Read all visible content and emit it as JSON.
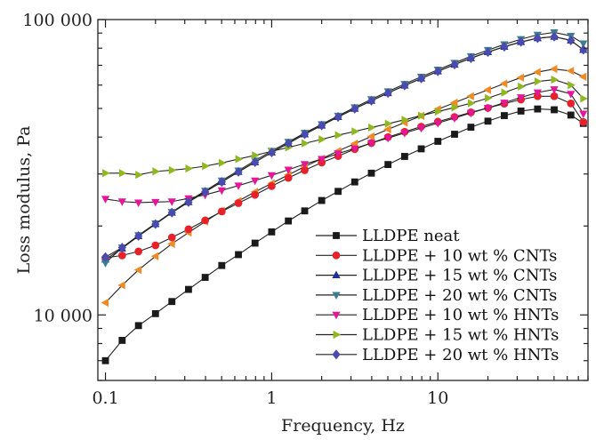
{
  "chart_data": {
    "type": "line",
    "title": "",
    "xlabel": "Frequency, Hz",
    "ylabel": "Loss modulus, Pa",
    "x_scale": "log",
    "y_scale": "log",
    "xlim": [
      0.09,
      80
    ],
    "ylim": [
      6000,
      100000
    ],
    "x_ticks": [
      {
        "value": 0.1,
        "label": "0.1"
      },
      {
        "value": 1,
        "label": "1"
      },
      {
        "value": 10,
        "label": "10"
      }
    ],
    "y_ticks": [
      {
        "value": 10000,
        "label": "10 000"
      },
      {
        "value": 100000,
        "label": "100 000"
      }
    ],
    "legend_position": "bottom-right",
    "grid": false,
    "x": [
      0.1,
      0.126,
      0.158,
      0.2,
      0.251,
      0.316,
      0.398,
      0.501,
      0.631,
      0.794,
      1.0,
      1.26,
      1.58,
      2.0,
      2.51,
      3.16,
      3.98,
      5.01,
      6.31,
      7.94,
      10.0,
      12.6,
      15.8,
      20.0,
      25.1,
      31.6,
      39.8,
      50.1,
      63.1,
      75.0
    ],
    "series": [
      {
        "name": "LLDPE neat",
        "marker": "square",
        "color": "#1a1a1a",
        "values": [
          7000,
          8200,
          9200,
          10100,
          11100,
          12200,
          13400,
          14700,
          16000,
          17500,
          19100,
          20800,
          22500,
          24400,
          26200,
          28200,
          30200,
          32300,
          34400,
          36500,
          38700,
          40900,
          43200,
          45300,
          47300,
          49000,
          49800,
          49500,
          47500,
          44500
        ]
      },
      {
        "name": "LLDPE + 10 wt % CNTs",
        "marker": "circle",
        "color": "#e8202a",
        "values": [
          15600,
          15900,
          16400,
          17200,
          18300,
          19500,
          20900,
          22400,
          23900,
          25500,
          27300,
          29100,
          30900,
          32800,
          34500,
          36400,
          38200,
          40000,
          41700,
          43400,
          45100,
          46800,
          48500,
          50200,
          51900,
          53600,
          55000,
          55000,
          52000,
          45000
        ]
      },
      {
        "name": "LLDPE + 15 wt % CNTs",
        "marker": "triangle-up",
        "color": "#1c2f9c",
        "values": [
          15400,
          16800,
          18500,
          20300,
          22200,
          24100,
          26100,
          28200,
          30500,
          32900,
          35500,
          38100,
          40900,
          43800,
          46800,
          49900,
          53100,
          56400,
          59800,
          63200,
          66800,
          70400,
          74000,
          77600,
          80900,
          84000,
          86500,
          87500,
          85000,
          79000
        ]
      },
      {
        "name": "LLDPE + 20 wt % CNTs",
        "marker": "triangle-down",
        "color": "#3a7e8f",
        "values": [
          15000,
          16900,
          18600,
          20400,
          22300,
          24300,
          26300,
          28500,
          30800,
          33300,
          35900,
          38500,
          41300,
          44200,
          47200,
          50400,
          53700,
          57100,
          60500,
          64000,
          67600,
          71300,
          75100,
          78800,
          82400,
          85800,
          88800,
          90500,
          88000,
          83000
        ]
      },
      {
        "name": "LLDPE + 10 wt % HNTs",
        "marker": "triangle-down",
        "color": "#e6169a",
        "values": [
          24700,
          24200,
          24000,
          24100,
          24200,
          24800,
          25500,
          26400,
          27400,
          28500,
          29700,
          31000,
          32400,
          33700,
          35200,
          36600,
          38200,
          39700,
          41300,
          42900,
          44600,
          46400,
          48300,
          50200,
          52300,
          54500,
          56600,
          58000,
          56000,
          48000
        ]
      },
      {
        "name": "LLDPE + 15 wt % HNTs",
        "marker": "triangle-right",
        "color": "#8fb820",
        "values": [
          30200,
          30200,
          29800,
          30600,
          30900,
          31300,
          31900,
          32700,
          33700,
          34700,
          35800,
          36900,
          38100,
          39300,
          40600,
          41800,
          43100,
          44400,
          45800,
          47300,
          48800,
          50400,
          52100,
          54200,
          56600,
          59300,
          61700,
          62600,
          60000,
          54000
        ]
      },
      {
        "name": "LLDPE + 20 wt % HNTs",
        "marker": "diamond",
        "color": "#4a4ab0",
        "values": [
          15700,
          16900,
          18500,
          20300,
          22200,
          24100,
          26100,
          28200,
          30500,
          32900,
          35500,
          38100,
          40900,
          43800,
          46800,
          49900,
          53100,
          56400,
          59800,
          63200,
          66800,
          70400,
          74000,
          77600,
          80900,
          84000,
          86500,
          87500,
          85000,
          79000
        ]
      }
    ],
    "extra_series_hidden_in_legend": [
      {
        "name": "",
        "marker": "triangle-left",
        "color": "#f08a24",
        "values": [
          11000,
          12600,
          14200,
          15800,
          17400,
          19000,
          20700,
          22500,
          24300,
          26100,
          27900,
          29800,
          31800,
          33800,
          35900,
          38000,
          40200,
          42500,
          44800,
          47200,
          49700,
          52300,
          55000,
          57800,
          60700,
          63600,
          66400,
          68000,
          67000,
          64000
        ]
      }
    ]
  }
}
